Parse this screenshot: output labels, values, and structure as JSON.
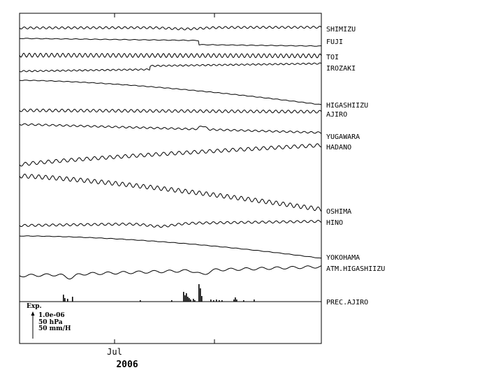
{
  "chart_data": {
    "type": "line",
    "title": "",
    "x_tick_labels": [
      "Jul"
    ],
    "year_label": "2006",
    "series": [
      {
        "name": "SHIMIZU"
      },
      {
        "name": "FUJI"
      },
      {
        "name": "TOI"
      },
      {
        "name": "IROZAKI"
      },
      {
        "name": "HIGASHIIZU"
      },
      {
        "name": "AJIRO"
      },
      {
        "name": "YUGAWARA"
      },
      {
        "name": "HADANO"
      },
      {
        "name": "OSHIMA"
      },
      {
        "name": "HINO"
      },
      {
        "name": "YOKOHAMA"
      },
      {
        "name": "ATM.HIGASHIIZU"
      },
      {
        "name": "PREC.AJIRO"
      }
    ],
    "scale_legend": {
      "title": "Exp.",
      "strain": "1.0e-06",
      "pressure": "50 hPa",
      "precipitation": "50 mm/H"
    },
    "grid": false
  }
}
